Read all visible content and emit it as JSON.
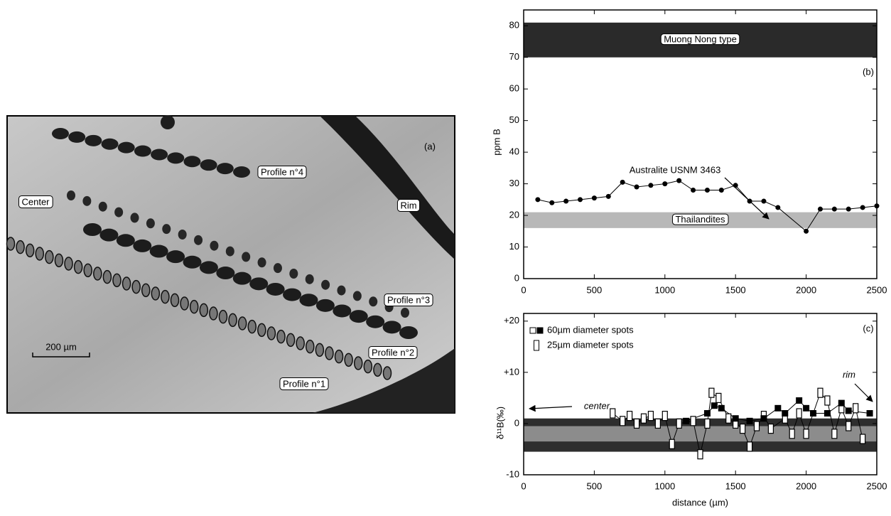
{
  "photo": {
    "panel_label": "(a)",
    "labels": [
      "Center",
      "Rim",
      "Profile n°4",
      "Profile n°3",
      "Profile n°2",
      "Profile n°1"
    ],
    "scale_bar": "200 µm"
  },
  "chart_data": [
    {
      "type": "line",
      "panel_label": "(b)",
      "ylabel": "ppm B",
      "xlim": [
        0,
        2500
      ],
      "xticks": [
        0,
        500,
        1000,
        1500,
        2000,
        2500
      ],
      "ylim": [
        0,
        85
      ],
      "yticks": [
        0,
        10,
        20,
        30,
        40,
        50,
        60,
        70,
        80
      ],
      "bands": [
        {
          "label": "Muong Nong type",
          "range": [
            70,
            81
          ],
          "color": "#2a2a2a"
        },
        {
          "label": "Thailandites",
          "range": [
            16,
            21
          ],
          "color": "#b8b8b8"
        }
      ],
      "annotations": [
        "Australite USNM 3463"
      ],
      "series": [
        {
          "color": "#000000",
          "marker": "circle",
          "x": [
            100,
            200,
            300,
            400,
            500,
            600,
            700,
            800,
            900,
            1000,
            1100,
            1200,
            1300,
            1400,
            1500,
            1600,
            1700,
            1800,
            2000,
            2100,
            2200,
            2300,
            2400,
            2500
          ],
          "values": [
            25,
            24,
            24.5,
            25,
            25.5,
            26,
            30.5,
            29,
            29.5,
            30,
            31,
            28,
            28,
            28,
            29.5,
            24.5,
            24.5,
            22.5,
            15,
            22,
            22,
            22,
            22.5,
            23
          ]
        }
      ]
    },
    {
      "type": "line",
      "panel_label": "(c)",
      "xlabel": "distance (µm)",
      "ylabel": "δ¹¹B(‰)",
      "xlim": [
        0,
        2500
      ],
      "xticks": [
        0,
        500,
        1000,
        1500,
        2000,
        2500
      ],
      "ylim": [
        -10,
        21.5
      ],
      "yticks": [
        -10,
        0,
        {
          "value": 10,
          "label": "+10"
        },
        {
          "value": 20,
          "label": "+20"
        }
      ],
      "bands": [
        {
          "range": [
            -5.5,
            1
          ],
          "color": "#2e2e2e"
        },
        {
          "range": [
            -3.5,
            -0.5
          ],
          "color": "#8c8c8c"
        }
      ],
      "annotations": [
        "center",
        "rim"
      ],
      "series": [
        {
          "name": "60µm diameter spots",
          "color": "#000000",
          "marker": "square",
          "x": [
            1150,
            1300,
            1350,
            1400,
            1500,
            1600,
            1700,
            1800,
            1850,
            1950,
            2000,
            2050,
            2150,
            2250,
            2300,
            2450
          ],
          "values": [
            0.5,
            2,
            3.5,
            3,
            1,
            0.5,
            1,
            3,
            2,
            4.5,
            3,
            2,
            2,
            4,
            2.5,
            2
          ]
        },
        {
          "name": "25µm diameter spots",
          "color": "#ffffff",
          "marker": "rect",
          "x": [
            630,
            700,
            750,
            800,
            850,
            900,
            950,
            1000,
            1050,
            1100,
            1200,
            1250,
            1300,
            1330,
            1380,
            1450,
            1500,
            1550,
            1600,
            1650,
            1700,
            1750,
            1850,
            1900,
            1950,
            2000,
            2100,
            2150,
            2200,
            2250,
            2300,
            2350,
            2400
          ],
          "values": [
            2,
            0.5,
            1.5,
            0,
            1,
            1.5,
            0,
            1.5,
            -4,
            0,
            0.5,
            -6,
            0,
            6,
            5,
            1,
            0,
            -1,
            -4.5,
            -0.5,
            1.5,
            -1,
            1,
            -2,
            2,
            -2,
            6,
            4.5,
            -2,
            3,
            -0.5,
            3,
            -3
          ]
        }
      ]
    }
  ]
}
